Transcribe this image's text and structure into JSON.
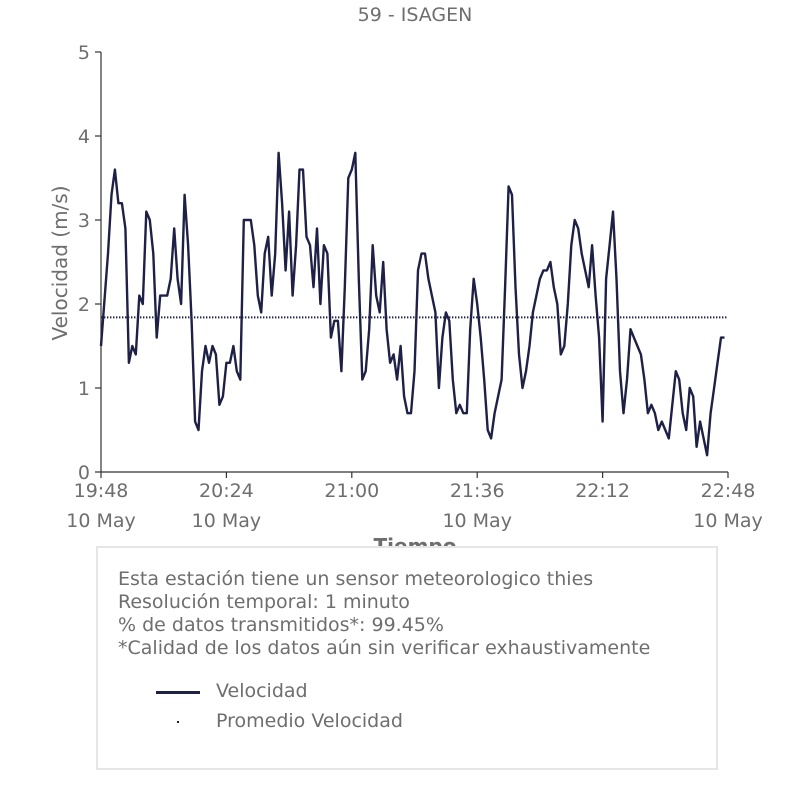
{
  "chart_data": {
    "type": "line",
    "title": "59 - ISAGEN",
    "xlabel": "Tiempo",
    "ylabel": "Velocidad (m/s)",
    "ylim": [
      0,
      5
    ],
    "yticks": [
      "0",
      "1",
      "2",
      "3",
      "4",
      "5"
    ],
    "xlim": [
      "19:48",
      "22:48"
    ],
    "xticks": [
      {
        "time": "19:48",
        "label": "19:48",
        "sublabel": "10 May"
      },
      {
        "time": "20:24",
        "label": "20:24",
        "sublabel": "10 May"
      },
      {
        "time": "21:00",
        "label": "21:00",
        "sublabel": ""
      },
      {
        "time": "21:36",
        "label": "21:36",
        "sublabel": "10 May"
      },
      {
        "time": "22:12",
        "label": "22:12",
        "sublabel": ""
      },
      {
        "time": "22:48",
        "label": "22:48",
        "sublabel": "10 May"
      }
    ],
    "series": [
      {
        "name": "Velocidad",
        "color": "#1e2046",
        "style": "solid",
        "points": [
          [
            "19:48",
            1.5
          ],
          [
            "19:50",
            2.6
          ],
          [
            "19:51",
            3.3
          ],
          [
            "19:52",
            3.6
          ],
          [
            "19:53",
            3.2
          ],
          [
            "19:54",
            3.2
          ],
          [
            "19:55",
            2.9
          ],
          [
            "19:56",
            1.3
          ],
          [
            "19:57",
            1.5
          ],
          [
            "19:58",
            1.4
          ],
          [
            "19:59",
            2.1
          ],
          [
            "20:00",
            2.0
          ],
          [
            "20:01",
            3.1
          ],
          [
            "20:02",
            3.0
          ],
          [
            "20:03",
            2.6
          ],
          [
            "20:04",
            1.6
          ],
          [
            "20:05",
            2.1
          ],
          [
            "20:07",
            2.1
          ],
          [
            "20:08",
            2.3
          ],
          [
            "20:09",
            2.9
          ],
          [
            "20:10",
            2.3
          ],
          [
            "20:11",
            2.0
          ],
          [
            "20:12",
            3.3
          ],
          [
            "20:13",
            2.7
          ],
          [
            "20:14",
            1.8
          ],
          [
            "20:15",
            0.6
          ],
          [
            "20:16",
            0.5
          ],
          [
            "20:17",
            1.2
          ],
          [
            "20:18",
            1.5
          ],
          [
            "20:19",
            1.3
          ],
          [
            "20:20",
            1.5
          ],
          [
            "20:21",
            1.4
          ],
          [
            "20:22",
            0.8
          ],
          [
            "20:23",
            0.9
          ],
          [
            "20:24",
            1.3
          ],
          [
            "20:25",
            1.3
          ],
          [
            "20:26",
            1.5
          ],
          [
            "20:27",
            1.2
          ],
          [
            "20:28",
            1.1
          ],
          [
            "20:29",
            3.0
          ],
          [
            "20:31",
            3.0
          ],
          [
            "20:32",
            2.7
          ],
          [
            "20:33",
            2.1
          ],
          [
            "20:34",
            1.9
          ],
          [
            "20:35",
            2.6
          ],
          [
            "20:36",
            2.8
          ],
          [
            "20:37",
            2.1
          ],
          [
            "20:38",
            2.6
          ],
          [
            "20:39",
            3.8
          ],
          [
            "20:40",
            3.2
          ],
          [
            "20:41",
            2.4
          ],
          [
            "20:42",
            3.1
          ],
          [
            "20:43",
            2.1
          ],
          [
            "20:44",
            2.7
          ],
          [
            "20:45",
            3.6
          ],
          [
            "20:46",
            3.6
          ],
          [
            "20:47",
            2.8
          ],
          [
            "20:48",
            2.7
          ],
          [
            "20:49",
            2.2
          ],
          [
            "20:50",
            2.9
          ],
          [
            "20:51",
            2.0
          ],
          [
            "20:52",
            2.7
          ],
          [
            "20:53",
            2.6
          ],
          [
            "20:54",
            1.6
          ],
          [
            "20:55",
            1.8
          ],
          [
            "20:56",
            1.8
          ],
          [
            "20:57",
            1.2
          ],
          [
            "20:58",
            2.2
          ],
          [
            "20:59",
            3.5
          ],
          [
            "21:00",
            3.6
          ],
          [
            "21:01",
            3.8
          ],
          [
            "21:02",
            2.3
          ],
          [
            "21:03",
            1.1
          ],
          [
            "21:04",
            1.2
          ],
          [
            "21:05",
            1.7
          ],
          [
            "21:06",
            2.7
          ],
          [
            "21:07",
            2.1
          ],
          [
            "21:08",
            1.9
          ],
          [
            "21:09",
            2.5
          ],
          [
            "21:10",
            1.7
          ],
          [
            "21:11",
            1.3
          ],
          [
            "21:12",
            1.4
          ],
          [
            "21:13",
            1.1
          ],
          [
            "21:14",
            1.5
          ],
          [
            "21:15",
            0.9
          ],
          [
            "21:16",
            0.7
          ],
          [
            "21:17",
            0.7
          ],
          [
            "21:18",
            1.2
          ],
          [
            "21:19",
            2.4
          ],
          [
            "21:20",
            2.6
          ],
          [
            "21:21",
            2.6
          ],
          [
            "21:22",
            2.3
          ],
          [
            "21:23",
            2.1
          ],
          [
            "21:24",
            1.9
          ],
          [
            "21:25",
            1.0
          ],
          [
            "21:26",
            1.6
          ],
          [
            "21:27",
            1.9
          ],
          [
            "21:28",
            1.8
          ],
          [
            "21:29",
            1.1
          ],
          [
            "21:30",
            0.7
          ],
          [
            "21:31",
            0.8
          ],
          [
            "21:32",
            0.7
          ],
          [
            "21:33",
            0.7
          ],
          [
            "21:34",
            1.7
          ],
          [
            "21:35",
            2.3
          ],
          [
            "21:36",
            2.0
          ],
          [
            "21:37",
            1.6
          ],
          [
            "21:38",
            1.1
          ],
          [
            "21:39",
            0.5
          ],
          [
            "21:40",
            0.4
          ],
          [
            "21:41",
            0.7
          ],
          [
            "21:43",
            1.1
          ],
          [
            "21:44",
            2.2
          ],
          [
            "21:45",
            3.4
          ],
          [
            "21:46",
            3.3
          ],
          [
            "21:47",
            2.2
          ],
          [
            "21:48",
            1.4
          ],
          [
            "21:49",
            1.0
          ],
          [
            "21:50",
            1.2
          ],
          [
            "21:51",
            1.5
          ],
          [
            "21:52",
            1.9
          ],
          [
            "21:54",
            2.3
          ],
          [
            "21:55",
            2.4
          ],
          [
            "21:56",
            2.4
          ],
          [
            "21:57",
            2.5
          ],
          [
            "21:58",
            2.2
          ],
          [
            "21:59",
            2.0
          ],
          [
            "22:00",
            1.4
          ],
          [
            "22:01",
            1.5
          ],
          [
            "22:02",
            2.0
          ],
          [
            "22:03",
            2.7
          ],
          [
            "22:04",
            3.0
          ],
          [
            "22:05",
            2.9
          ],
          [
            "22:06",
            2.6
          ],
          [
            "22:08",
            2.2
          ],
          [
            "22:09",
            2.7
          ],
          [
            "22:10",
            2.1
          ],
          [
            "22:11",
            1.6
          ],
          [
            "22:12",
            0.6
          ],
          [
            "22:13",
            2.3
          ],
          [
            "22:14",
            2.7
          ],
          [
            "22:15",
            3.1
          ],
          [
            "22:16",
            2.3
          ],
          [
            "22:17",
            1.2
          ],
          [
            "22:18",
            0.7
          ],
          [
            "22:19",
            1.1
          ],
          [
            "22:20",
            1.7
          ],
          [
            "22:21",
            1.6
          ],
          [
            "22:22",
            1.5
          ],
          [
            "22:23",
            1.4
          ],
          [
            "22:24",
            1.1
          ],
          [
            "22:25",
            0.7
          ],
          [
            "22:26",
            0.8
          ],
          [
            "22:27",
            0.7
          ],
          [
            "22:28",
            0.5
          ],
          [
            "22:29",
            0.6
          ],
          [
            "22:30",
            0.5
          ],
          [
            "22:31",
            0.4
          ],
          [
            "22:32",
            0.8
          ],
          [
            "22:33",
            1.2
          ],
          [
            "22:34",
            1.1
          ],
          [
            "22:35",
            0.7
          ],
          [
            "22:36",
            0.5
          ],
          [
            "22:37",
            1.0
          ],
          [
            "22:38",
            0.9
          ],
          [
            "22:39",
            0.3
          ],
          [
            "22:40",
            0.6
          ],
          [
            "22:41",
            0.4
          ],
          [
            "22:42",
            0.2
          ],
          [
            "22:43",
            0.7
          ],
          [
            "22:44",
            1.0
          ],
          [
            "22:45",
            1.3
          ],
          [
            "22:46",
            1.6
          ],
          [
            "22:47",
            1.6
          ]
        ]
      },
      {
        "name": "Promedio Velocidad",
        "color": "#1e2046",
        "style": "dotted",
        "points": [
          [
            "19:48",
            1.84
          ],
          [
            "22:48",
            1.84
          ]
        ]
      }
    ],
    "grid": false
  },
  "info": {
    "lines": [
      "Esta estación tiene un sensor meteorologico thies",
      "Resolución temporal: 1 minuto",
      "% de datos transmitidos*: 99.45%",
      "*Calidad de los datos aún sin verificar exhaustivamente"
    ],
    "legend": [
      {
        "label": "Velocidad",
        "marker": "line"
      },
      {
        "label": "Promedio Velocidad",
        "marker": "dot"
      }
    ]
  }
}
